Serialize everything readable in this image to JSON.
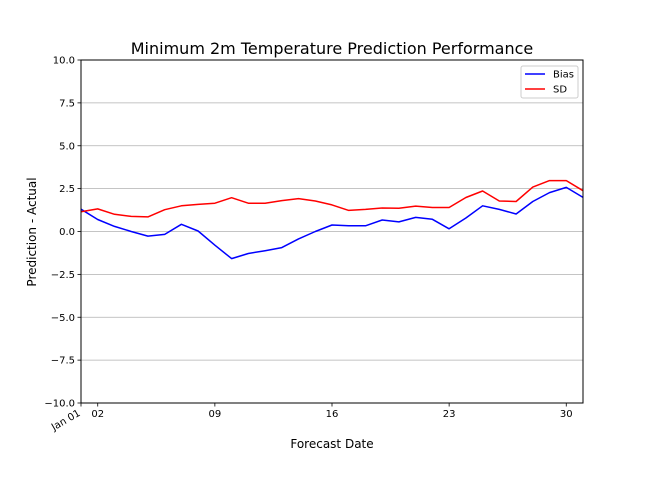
{
  "chart_data": {
    "type": "line",
    "title": "Minimum 2m Temperature Prediction Performance",
    "xlabel": "Forecast Date",
    "ylabel": "Prediction - Actual",
    "ylim": [
      -10,
      10
    ],
    "yticks": [
      -10.0,
      -7.5,
      -5.0,
      -2.5,
      0.0,
      2.5,
      5.0,
      7.5,
      10.0
    ],
    "ytick_labels": [
      "−10.0",
      "−7.5",
      "−5.0",
      "−2.5",
      "0.0",
      "2.5",
      "5.0",
      "7.5",
      "10.0"
    ],
    "xlim": [
      "Jan 01",
      "Jan 31"
    ],
    "x_tick_labels": [
      {
        "date": "Jan 01",
        "label": "Jan 01",
        "rotated": true
      },
      {
        "date": "Jan 02",
        "label": "02"
      },
      {
        "date": "Jan 09",
        "label": "09"
      },
      {
        "date": "Jan 16",
        "label": "16"
      },
      {
        "date": "Jan 23",
        "label": "23"
      },
      {
        "date": "Jan 30",
        "label": "30"
      }
    ],
    "grid": "horizontal",
    "legend_position": "top-right",
    "x": [
      "Jan 01",
      "Jan 02",
      "Jan 03",
      "Jan 04",
      "Jan 05",
      "Jan 06",
      "Jan 07",
      "Jan 08",
      "Jan 09",
      "Jan 10",
      "Jan 11",
      "Jan 12",
      "Jan 13",
      "Jan 14",
      "Jan 15",
      "Jan 16",
      "Jan 17",
      "Jan 18",
      "Jan 19",
      "Jan 20",
      "Jan 21",
      "Jan 22",
      "Jan 23",
      "Jan 24",
      "Jan 25",
      "Jan 26",
      "Jan 27",
      "Jan 28",
      "Jan 29",
      "Jan 30",
      "Jan 31"
    ],
    "series": [
      {
        "name": "Bias",
        "color": "#0000ff",
        "values": [
          1.3,
          0.7,
          0.3,
          0.0,
          -0.27,
          -0.17,
          0.42,
          0.03,
          -0.8,
          -1.58,
          -1.28,
          -1.12,
          -0.94,
          -0.43,
          0.0,
          0.38,
          0.33,
          0.33,
          0.67,
          0.56,
          0.82,
          0.71,
          0.16,
          0.79,
          1.5,
          1.29,
          1.02,
          1.75,
          2.27,
          2.57,
          1.99
        ]
      },
      {
        "name": "SD",
        "color": "#ff0000",
        "values": [
          1.15,
          1.32,
          1.0,
          0.88,
          0.85,
          1.27,
          1.5,
          1.58,
          1.65,
          1.97,
          1.65,
          1.65,
          1.8,
          1.92,
          1.78,
          1.55,
          1.23,
          1.29,
          1.37,
          1.35,
          1.48,
          1.4,
          1.4,
          1.98,
          2.36,
          1.78,
          1.75,
          2.59,
          2.97,
          2.97,
          2.38
        ]
      }
    ]
  }
}
